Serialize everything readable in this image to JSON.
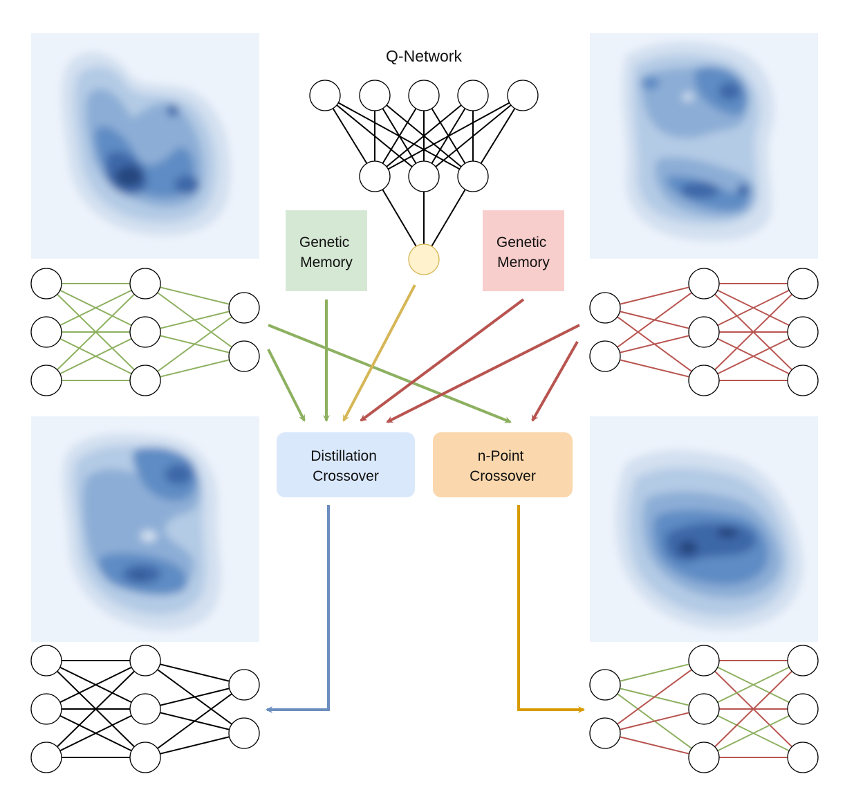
{
  "title": "Q-Network",
  "boxes": {
    "genetic_memory_left": "Genetic\nMemory",
    "genetic_memory_right": "Genetic\nMemory",
    "distillation_crossover": "Distillation\nCrossover",
    "n_point_crossover": "n-Point\nCrossover"
  },
  "colors": {
    "green": "#8db060",
    "red": "#b85450",
    "yellow": "#d6b656",
    "blue": "#6c8ebf",
    "orange": "#d79b00",
    "genetic_left_fill": "#d5e8d4",
    "genetic_right_fill": "#f8cecc",
    "distill_fill": "#dae8fc",
    "npoint_fill": "#fad7ac",
    "density_bg": "#edf3fb"
  }
}
